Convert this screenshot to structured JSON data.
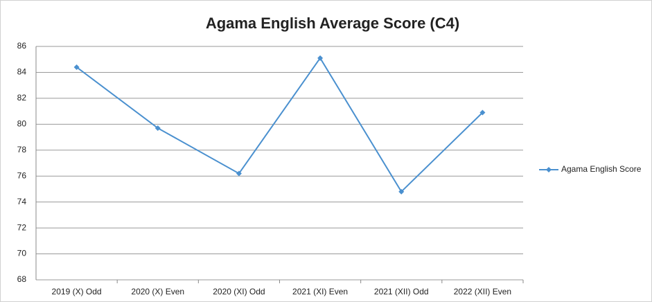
{
  "chart_data": {
    "type": "line",
    "title": "Agama English Average Score (C4)",
    "categories": [
      "2019 (X) Odd",
      "2020 (X) Even",
      "2020 (XI) Odd",
      "2021 (XI) Even",
      "2021 (XII) Odd",
      "2022 (XII) Even"
    ],
    "series": [
      {
        "name": "Agama English Score",
        "color": "#4a90cf",
        "values": [
          84.4,
          79.7,
          76.2,
          85.1,
          74.8,
          80.9
        ]
      }
    ],
    "ylim": [
      68,
      86
    ],
    "yticks": [
      68,
      70,
      72,
      74,
      76,
      78,
      80,
      82,
      84,
      86
    ],
    "grid": true,
    "legend": "right"
  }
}
